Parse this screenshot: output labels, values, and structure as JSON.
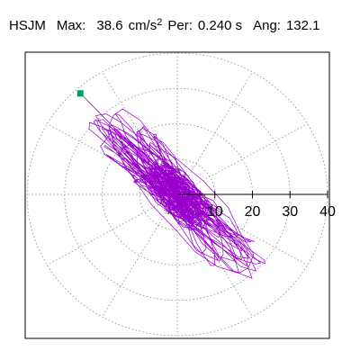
{
  "header": {
    "station": "HSJM",
    "max_label": "Max:",
    "max_value": "38.6",
    "max_unit": "cm/s",
    "max_unit_exp": "2",
    "per_label": "Per:",
    "per_value": "0.240 s",
    "ang_label": "Ang:",
    "ang_value": "132.1"
  },
  "colors": {
    "orbit": "#9900cc",
    "marker": "#009966",
    "grid": "#8c8c8c",
    "axis": "#000000"
  },
  "chart_data": {
    "type": "scatter",
    "title": "HSJM  Max: 38.6 cm/s^2  Per: 0.240 s  Ang: 132.1",
    "radial_ticks": [
      "10",
      "20",
      "30",
      "40"
    ],
    "radial_max": 40,
    "angular_grid_deg": [
      0,
      30,
      60,
      90,
      120,
      150,
      180,
      210,
      240,
      270,
      300,
      330
    ],
    "peak_point": {
      "x": -25.8,
      "y": 28.6
    },
    "orbit_principal_angle_deg": 132.1,
    "series": [
      {
        "values": []
      }
    ]
  }
}
